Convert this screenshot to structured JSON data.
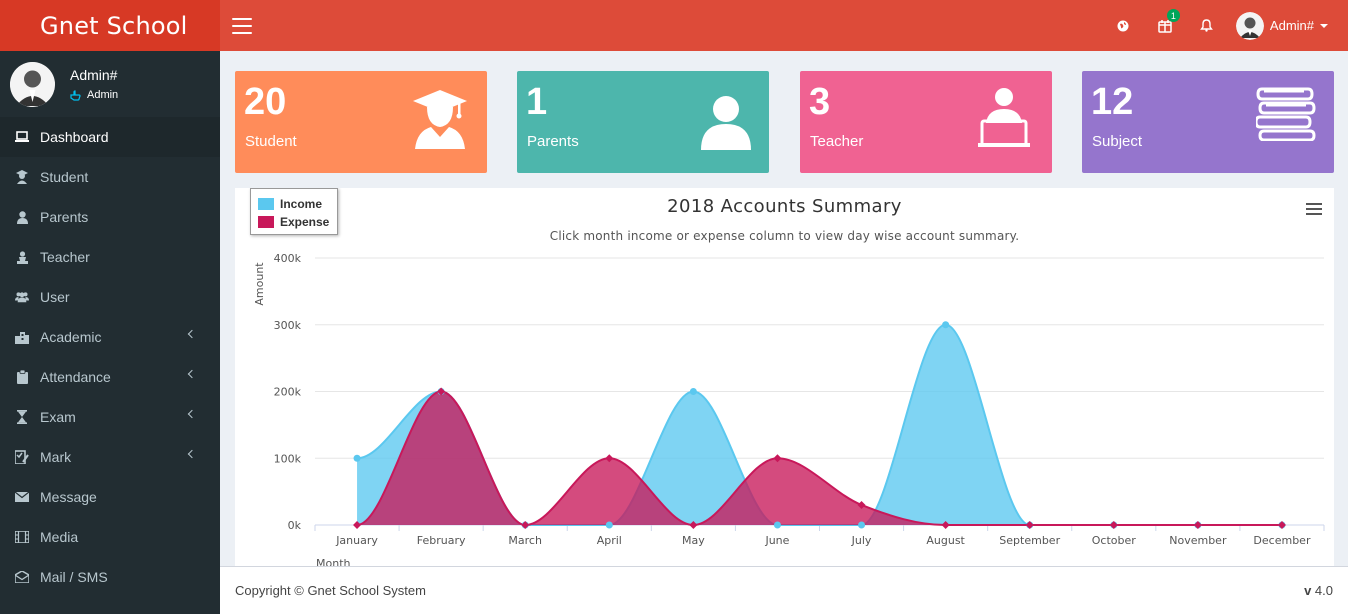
{
  "app": {
    "title": "Gnet School"
  },
  "header": {
    "notification_badge": "1",
    "user_name": "Admin#"
  },
  "sidebar": {
    "user": {
      "name": "Admin#",
      "role": "Admin"
    },
    "items": [
      {
        "label": "Dashboard",
        "icon": "laptop-icon",
        "active": true,
        "has_children": false
      },
      {
        "label": "Student",
        "icon": "student-icon",
        "has_children": false
      },
      {
        "label": "Parents",
        "icon": "user-icon",
        "has_children": false
      },
      {
        "label": "Teacher",
        "icon": "teacher-icon",
        "has_children": false
      },
      {
        "label": "User",
        "icon": "users-icon",
        "has_children": false
      },
      {
        "label": "Academic",
        "icon": "building-icon",
        "has_children": true
      },
      {
        "label": "Attendance",
        "icon": "clipboard-icon",
        "has_children": true
      },
      {
        "label": "Exam",
        "icon": "hourglass-icon",
        "has_children": true
      },
      {
        "label": "Mark",
        "icon": "checklist-icon",
        "has_children": true
      },
      {
        "label": "Message",
        "icon": "envelope-icon",
        "has_children": false
      },
      {
        "label": "Media",
        "icon": "film-icon",
        "has_children": false
      },
      {
        "label": "Mail / SMS",
        "icon": "mail-sms-icon",
        "has_children": false
      }
    ]
  },
  "stats": [
    {
      "count": "20",
      "label": "Student",
      "color": "#ff8c5a",
      "icon": "graduate-icon"
    },
    {
      "count": "1",
      "label": "Parents",
      "color": "#4db6ac",
      "icon": "user-icon"
    },
    {
      "count": "3",
      "label": "Teacher",
      "color": "#f06292",
      "icon": "teacher-icon"
    },
    {
      "count": "12",
      "label": "Subject",
      "color": "#9575cd",
      "icon": "books-icon"
    }
  ],
  "chart_data": {
    "type": "area",
    "title": "2018 Accounts Summary",
    "subtitle": "Click month income or expense column to view day wise account summary.",
    "xlabel": "Month",
    "ylabel": "Amount",
    "ylim": [
      0,
      400000
    ],
    "yticks": [
      "0k",
      "100k",
      "200k",
      "300k",
      "400k"
    ],
    "categories": [
      "January",
      "February",
      "March",
      "April",
      "May",
      "June",
      "July",
      "August",
      "September",
      "October",
      "November",
      "December"
    ],
    "legend_position": "top-left",
    "series": [
      {
        "name": "Income",
        "color": "#5bc8ef",
        "values": [
          100000,
          200000,
          0,
          0,
          200000,
          0,
          0,
          300000,
          0,
          0,
          0,
          0
        ]
      },
      {
        "name": "Expense",
        "color": "#c8185a",
        "values": [
          0,
          200000,
          0,
          100000,
          0,
          100000,
          30000,
          0,
          0,
          0,
          0,
          0
        ]
      }
    ]
  },
  "footer": {
    "copyright": "Copyright © Gnet School System",
    "version_label": "v",
    "version": "4.0"
  }
}
